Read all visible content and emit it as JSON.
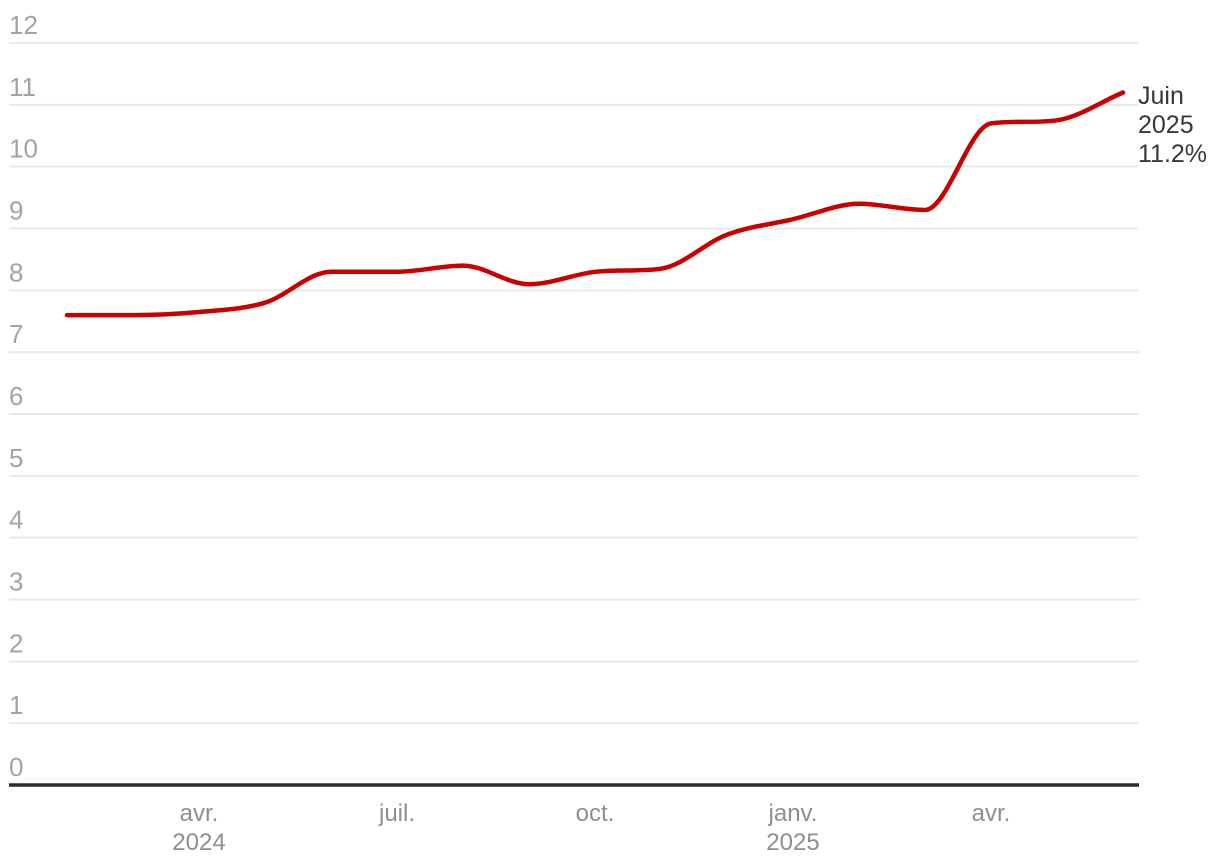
{
  "chart_data": {
    "type": "line",
    "title": "",
    "unit": "%",
    "x": [
      "2024-02",
      "2024-03",
      "2024-04",
      "2024-05",
      "2024-06",
      "2024-07",
      "2024-08",
      "2024-09",
      "2024-10",
      "2024-11",
      "2024-12",
      "2025-01",
      "2025-02",
      "2025-03",
      "2025-04",
      "2025-05",
      "2025-06"
    ],
    "values": [
      7.6,
      7.6,
      7.65,
      7.8,
      8.3,
      8.3,
      8.4,
      8.1,
      8.3,
      8.35,
      8.9,
      9.15,
      9.4,
      9.3,
      10.7,
      10.75,
      11.2
    ],
    "ylim": [
      0,
      12
    ],
    "y_ticks": [
      0,
      1,
      2,
      3,
      4,
      5,
      6,
      7,
      8,
      9,
      10,
      11,
      12
    ],
    "x_ticks": [
      {
        "index": 2,
        "label": "avr.",
        "sublabel": "2024"
      },
      {
        "index": 5,
        "label": "juil.",
        "sublabel": ""
      },
      {
        "index": 8,
        "label": "oct.",
        "sublabel": ""
      },
      {
        "index": 11,
        "label": "janv.",
        "sublabel": "2025"
      },
      {
        "index": 14,
        "label": "avr.",
        "sublabel": ""
      }
    ],
    "annotation": {
      "lines": [
        "Juin",
        "2025",
        "11.2%"
      ]
    },
    "legend": "none",
    "grid": "horizontal",
    "colors": {
      "line": "#c80000",
      "grid": "#e9e9e9",
      "axis": "#2d2d2d",
      "y_label": "#a3a3a3",
      "x_label": "#8f8f8f",
      "annotation": "#383838"
    }
  }
}
